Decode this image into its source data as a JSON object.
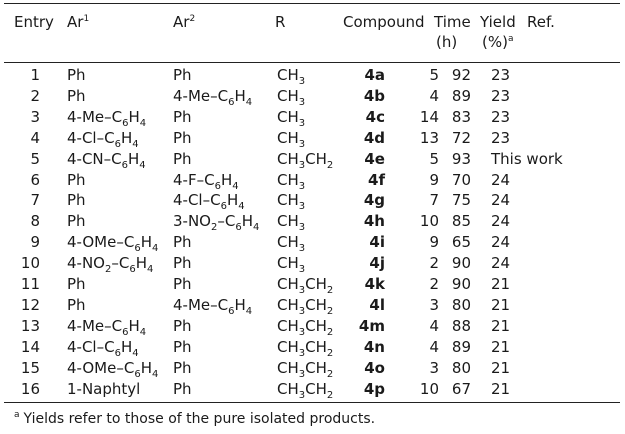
{
  "header": {
    "entry": "Entry",
    "ar1": "Ar",
    "ar1_sup": "1",
    "ar2": "Ar",
    "ar2_sup": "2",
    "r": "R",
    "compound": "Compound",
    "time": "Time",
    "time_unit": "(h)",
    "yield": "Yield",
    "yield_unit": "(%)",
    "yield_sup": "a",
    "ref": "Ref."
  },
  "rows": [
    {
      "entry": "1",
      "ar1": [
        "Ph"
      ],
      "ar2": [
        "Ph"
      ],
      "r": [
        "CH",
        "3",
        ""
      ],
      "compound": "4a",
      "time": "5",
      "yield": "92",
      "ref": "23"
    },
    {
      "entry": "2",
      "ar1": [
        "Ph"
      ],
      "ar2": [
        "4-Me–C",
        "6",
        "H",
        "4"
      ],
      "r": [
        "CH",
        "3",
        ""
      ],
      "compound": "4b",
      "time": "4",
      "yield": "89",
      "ref": "23"
    },
    {
      "entry": "3",
      "ar1": [
        "4-Me–C",
        "6",
        "H",
        "4"
      ],
      "ar2": [
        "Ph"
      ],
      "r": [
        "CH",
        "3",
        ""
      ],
      "compound": "4c",
      "time": "14",
      "yield": "83",
      "ref": "23"
    },
    {
      "entry": "4",
      "ar1": [
        "4-Cl–C",
        "6",
        "H",
        "4"
      ],
      "ar2": [
        "Ph"
      ],
      "r": [
        "CH",
        "3",
        ""
      ],
      "compound": "4d",
      "time": "13",
      "yield": "72",
      "ref": "23"
    },
    {
      "entry": "5",
      "ar1": [
        "4-CN–C",
        "6",
        "H",
        "4"
      ],
      "ar2": [
        "Ph"
      ],
      "r": [
        "CH",
        "3",
        "CH",
        "2"
      ],
      "compound": "4e",
      "time": "5",
      "yield": "93",
      "ref": "This work"
    },
    {
      "entry": "6",
      "ar1": [
        "Ph"
      ],
      "ar2": [
        "4-F–C",
        "6",
        "H",
        "4"
      ],
      "r": [
        "CH",
        "3",
        ""
      ],
      "compound": "4f",
      "time": "9",
      "yield": "70",
      "ref": "24"
    },
    {
      "entry": "7",
      "ar1": [
        "Ph"
      ],
      "ar2": [
        "4-Cl–C",
        "6",
        "H",
        "4"
      ],
      "r": [
        "CH",
        "3",
        ""
      ],
      "compound": "4g",
      "time": "7",
      "yield": "75",
      "ref": "24"
    },
    {
      "entry": "8",
      "ar1": [
        "Ph"
      ],
      "ar2": [
        "3-NO",
        "2",
        "–C",
        "6",
        "H",
        "4"
      ],
      "r": [
        "CH",
        "3",
        ""
      ],
      "compound": "4h",
      "time": "10",
      "yield": "85",
      "ref": "24"
    },
    {
      "entry": "9",
      "ar1": [
        "4-OMe–C",
        "6",
        "H",
        "4"
      ],
      "ar2": [
        "Ph"
      ],
      "r": [
        "CH",
        "3",
        ""
      ],
      "compound": "4i",
      "time": "9",
      "yield": "65",
      "ref": "24"
    },
    {
      "entry": "10",
      "ar1": [
        "4-NO",
        "2",
        "–C",
        "6",
        "H",
        "4"
      ],
      "ar2": [
        "Ph"
      ],
      "r": [
        "CH",
        "3",
        ""
      ],
      "compound": "4j",
      "time": "2",
      "yield": "90",
      "ref": "24"
    },
    {
      "entry": "11",
      "ar1": [
        "Ph"
      ],
      "ar2": [
        "Ph"
      ],
      "r": [
        "CH",
        "3",
        "CH",
        "2"
      ],
      "compound": "4k",
      "time": "2",
      "yield": "90",
      "ref": "21"
    },
    {
      "entry": "12",
      "ar1": [
        "Ph"
      ],
      "ar2": [
        "4-Me–C",
        "6",
        "H",
        "4"
      ],
      "r": [
        "CH",
        "3",
        "CH",
        "2"
      ],
      "compound": "4l",
      "time": "3",
      "yield": "80",
      "ref": "21"
    },
    {
      "entry": "13",
      "ar1": [
        "4-Me–C",
        "6",
        "H",
        "4"
      ],
      "ar2": [
        "Ph"
      ],
      "r": [
        "CH",
        "3",
        "CH",
        "2"
      ],
      "compound": "4m",
      "time": "4",
      "yield": "88",
      "ref": "21"
    },
    {
      "entry": "14",
      "ar1": [
        "4-Cl–C",
        "6",
        "H",
        "4"
      ],
      "ar2": [
        "Ph"
      ],
      "r": [
        "CH",
        "3",
        "CH",
        "2"
      ],
      "compound": "4n",
      "time": "4",
      "yield": "89",
      "ref": "21"
    },
    {
      "entry": "15",
      "ar1": [
        "4-OMe–C",
        "6",
        "H",
        "4"
      ],
      "ar2": [
        "Ph"
      ],
      "r": [
        "CH",
        "3",
        "CH",
        "2"
      ],
      "compound": "4o",
      "time": "3",
      "yield": "80",
      "ref": "21"
    },
    {
      "entry": "16",
      "ar1": [
        "1-Naphtyl"
      ],
      "ar2": [
        "Ph"
      ],
      "r": [
        "CH",
        "3",
        "CH",
        "2"
      ],
      "compound": "4p",
      "time": "10",
      "yield": "67",
      "ref": "21"
    }
  ],
  "footnote": {
    "marker": "a",
    "text": "Yields refer to those of the pure isolated products."
  }
}
